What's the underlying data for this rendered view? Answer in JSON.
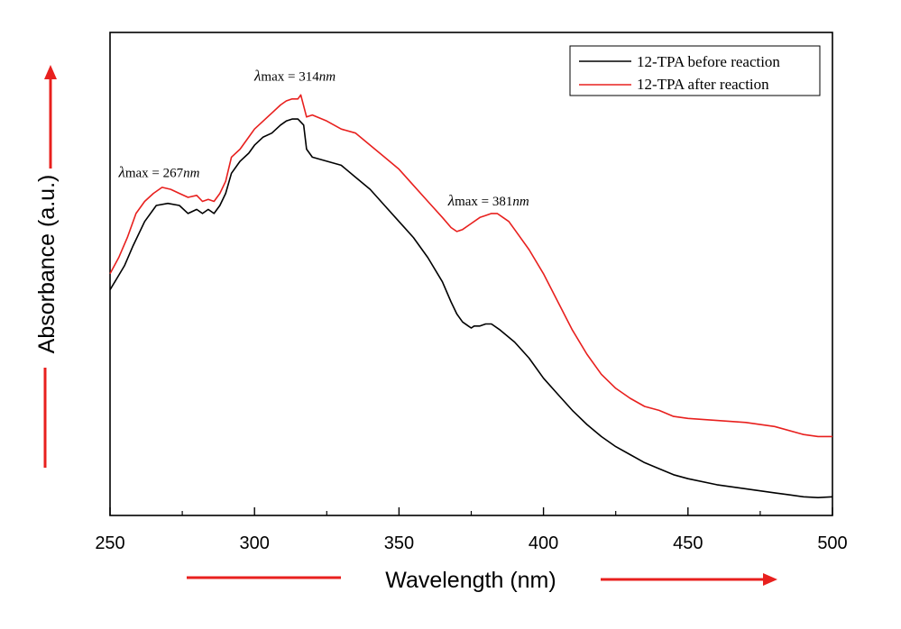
{
  "chart_data": {
    "type": "line",
    "title": "",
    "xlabel": "Wavelength (nm)",
    "ylabel": "Absorbance (a.u.)",
    "xlim": [
      250,
      500
    ],
    "ylim": [
      0,
      1
    ],
    "x_ticks": [
      250,
      300,
      350,
      400,
      450,
      500
    ],
    "x_tick_labels": [
      "250",
      "300",
      "350",
      "400",
      "450",
      "500"
    ],
    "y_ticks_shown": false,
    "grid": false,
    "legend_position": "top-right",
    "series": [
      {
        "name": "12-TPA before reaction",
        "color": "#000000",
        "x": [
          250,
          255,
          258,
          262,
          266,
          270,
          274,
          277,
          280,
          282,
          284,
          286,
          288,
          290,
          292,
          295,
          298,
          300,
          303,
          306,
          309,
          311,
          313,
          315,
          317,
          318,
          320,
          325,
          330,
          335,
          340,
          345,
          350,
          355,
          360,
          365,
          368,
          370,
          372,
          374,
          375,
          376,
          378,
          380,
          382,
          385,
          390,
          395,
          400,
          405,
          410,
          415,
          420,
          425,
          430,
          435,
          440,
          445,
          450,
          460,
          470,
          480,
          485,
          490,
          495,
          500
        ],
        "y": [
          0.53,
          0.59,
          0.64,
          0.7,
          0.74,
          0.745,
          0.74,
          0.72,
          0.73,
          0.72,
          0.73,
          0.72,
          0.74,
          0.77,
          0.82,
          0.85,
          0.87,
          0.89,
          0.91,
          0.92,
          0.94,
          0.95,
          0.955,
          0.955,
          0.94,
          0.88,
          0.86,
          0.85,
          0.84,
          0.81,
          0.78,
          0.74,
          0.7,
          0.66,
          0.61,
          0.55,
          0.5,
          0.47,
          0.45,
          0.44,
          0.435,
          0.44,
          0.44,
          0.445,
          0.445,
          0.43,
          0.4,
          0.36,
          0.31,
          0.27,
          0.23,
          0.195,
          0.165,
          0.14,
          0.12,
          0.1,
          0.085,
          0.07,
          0.06,
          0.045,
          0.035,
          0.025,
          0.02,
          0.015,
          0.013,
          0.015
        ]
      },
      {
        "name": "12-TPA after reaction",
        "color": "#e8201e",
        "x": [
          250,
          253,
          256,
          259,
          262,
          265,
          268,
          271,
          274,
          277,
          280,
          282,
          284,
          286,
          288,
          290,
          292,
          295,
          298,
          300,
          303,
          306,
          309,
          311,
          313,
          315,
          316,
          318,
          320,
          325,
          330,
          335,
          340,
          345,
          350,
          355,
          360,
          365,
          368,
          370,
          372,
          375,
          378,
          380,
          382,
          384,
          386,
          388,
          390,
          395,
          400,
          405,
          410,
          415,
          420,
          425,
          430,
          435,
          440,
          445,
          450,
          460,
          470,
          480,
          490,
          495,
          500
        ],
        "y": [
          0.57,
          0.61,
          0.66,
          0.72,
          0.75,
          0.77,
          0.785,
          0.78,
          0.77,
          0.76,
          0.765,
          0.75,
          0.755,
          0.75,
          0.77,
          0.8,
          0.86,
          0.88,
          0.91,
          0.93,
          0.95,
          0.97,
          0.99,
          1.0,
          1.005,
          1.005,
          1.015,
          0.96,
          0.965,
          0.95,
          0.93,
          0.92,
          0.89,
          0.86,
          0.83,
          0.79,
          0.75,
          0.71,
          0.685,
          0.675,
          0.68,
          0.695,
          0.71,
          0.715,
          0.72,
          0.72,
          0.71,
          0.7,
          0.68,
          0.63,
          0.57,
          0.5,
          0.43,
          0.37,
          0.32,
          0.285,
          0.26,
          0.24,
          0.23,
          0.215,
          0.21,
          0.205,
          0.2,
          0.19,
          0.17,
          0.165,
          0.165
        ]
      }
    ],
    "annotations": [
      {
        "greek": "λ",
        "text": "max = 267",
        "unit": "nm",
        "x": 267,
        "y": 0.81
      },
      {
        "greek": "λ",
        "text": "max = 314",
        "unit": "nm",
        "x": 314,
        "y": 1.05
      },
      {
        "greek": "λ",
        "text": "max = 381",
        "unit": "nm",
        "x": 381,
        "y": 0.74
      }
    ],
    "arrow_color": "#e8201e"
  }
}
